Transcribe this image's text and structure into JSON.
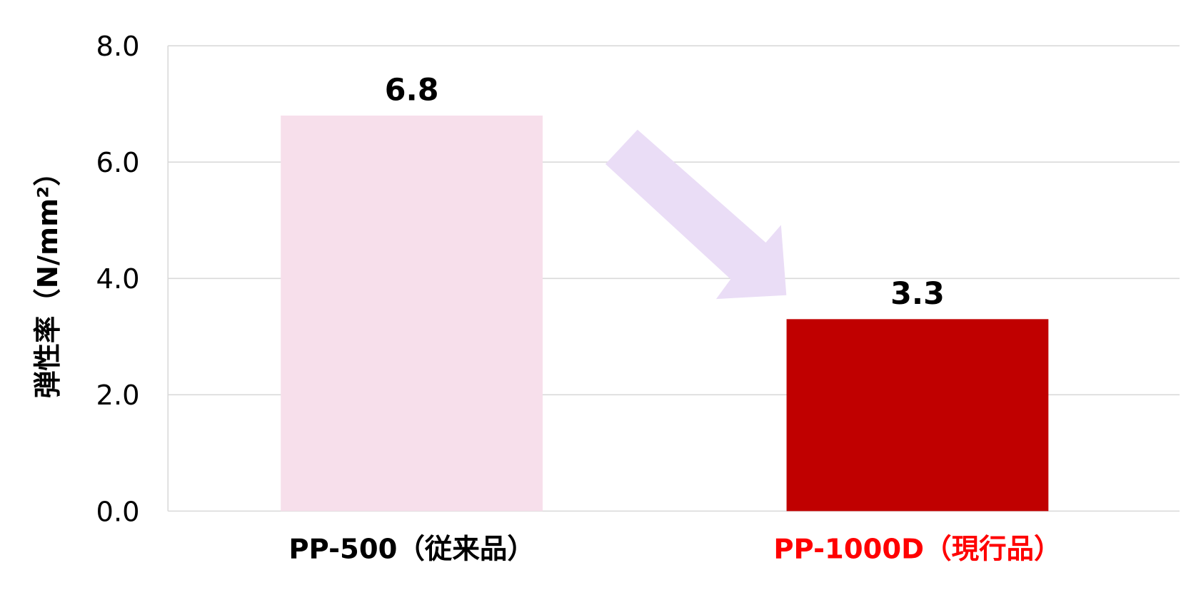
{
  "chart_data": {
    "type": "bar",
    "categories": [
      "PP-500（従来品）",
      "PP-1000D（現行品）"
    ],
    "values": [
      6.8,
      3.3
    ],
    "data_labels": [
      "6.8",
      "3.3"
    ],
    "bar_colors": [
      "#F7DFEB",
      "#C00000"
    ],
    "category_label_colors": [
      "#000000",
      "#FF0000"
    ],
    "title": "",
    "xlabel": "",
    "ylabel": "弾性率（N/mm²）",
    "ylim": [
      0,
      8
    ],
    "yticks": [
      "0.0",
      "2.0",
      "4.0",
      "6.0",
      "8.0"
    ],
    "grid": true,
    "annotation": {
      "type": "arrow",
      "from": "PP-500（従来品）",
      "to": "PP-1000D（現行品）",
      "color": "#EADDF6"
    }
  }
}
